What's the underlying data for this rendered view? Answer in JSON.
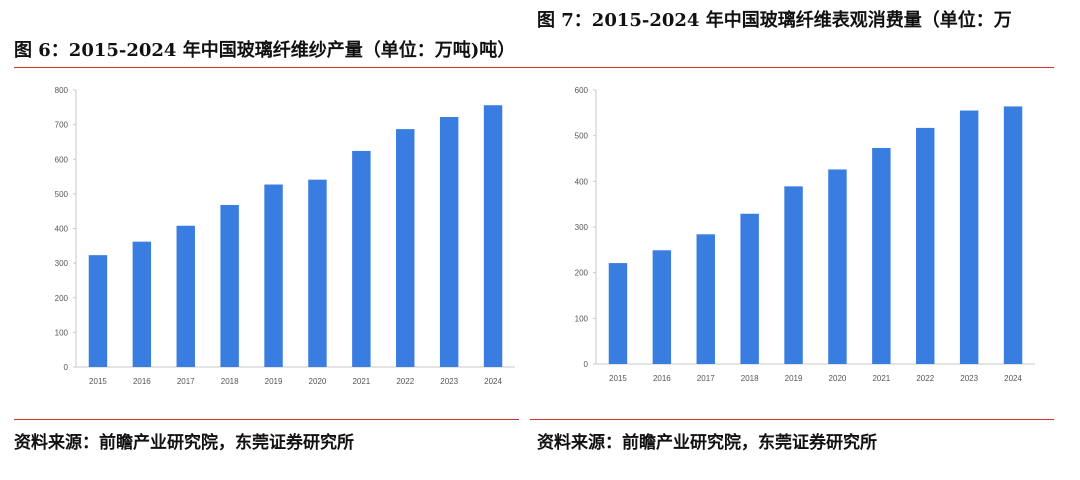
{
  "figures": [
    {
      "title": "图 6：2015-2024 年中国玻璃纤维纱产量（单位：万吨)吨）",
      "source": "资料来源：前瞻产业研究院，东莞证券研究所"
    },
    {
      "title": "图 7：2015-2024 年中国玻璃纤维表观消费量（单位：万",
      "source": "资料来源：前瞻产业研究院，东莞证券研究所"
    }
  ],
  "colors": {
    "bar": "#3a7de0",
    "rule": "#d23030",
    "axis": "#c8c8c8"
  },
  "chart_data": [
    {
      "type": "bar",
      "categories": [
        "2015",
        "2016",
        "2017",
        "2018",
        "2019",
        "2020",
        "2021",
        "2022",
        "2023",
        "2024"
      ],
      "values": [
        323,
        362,
        408,
        468,
        527,
        541,
        624,
        687,
        722,
        756
      ],
      "ylim": [
        0,
        800
      ],
      "yticks": [
        0,
        100,
        200,
        300,
        400,
        500,
        600,
        700,
        800
      ],
      "grid": false,
      "legend": "none"
    },
    {
      "type": "bar",
      "categories": [
        "2015",
        "2016",
        "2017",
        "2018",
        "2019",
        "2020",
        "2021",
        "2022",
        "2023",
        "2024"
      ],
      "values": [
        221,
        249,
        284,
        329,
        389,
        426,
        473,
        517,
        555,
        564
      ],
      "ylim": [
        0,
        600
      ],
      "yticks": [
        0,
        100,
        200,
        300,
        400,
        500,
        600
      ],
      "grid": false,
      "legend": "none"
    }
  ]
}
